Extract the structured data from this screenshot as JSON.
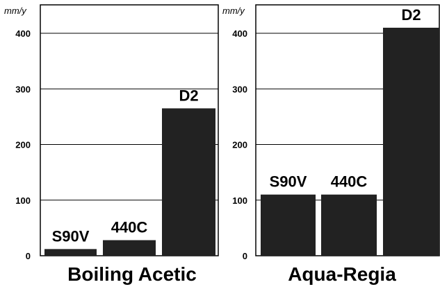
{
  "chart_data": [
    {
      "type": "bar",
      "title": "Boiling Acetic",
      "ylabel": "mm/y",
      "ylim": [
        0,
        410
      ],
      "yticks": [
        "0",
        "100",
        "200",
        "300",
        "400"
      ],
      "grid": true,
      "categories": [
        "S90V",
        "440C",
        "D2"
      ],
      "values": [
        12,
        28,
        265
      ],
      "bar_color": "#222222"
    },
    {
      "type": "bar",
      "title": "Aqua-Regia",
      "ylabel": "mm/y",
      "ylim": [
        0,
        410
      ],
      "yticks": [
        "0",
        "100",
        "200",
        "300",
        "400"
      ],
      "grid": true,
      "categories": [
        "S90V",
        "440C",
        "D2"
      ],
      "values": [
        110,
        110,
        410
      ],
      "bar_color": "#222222"
    }
  ]
}
